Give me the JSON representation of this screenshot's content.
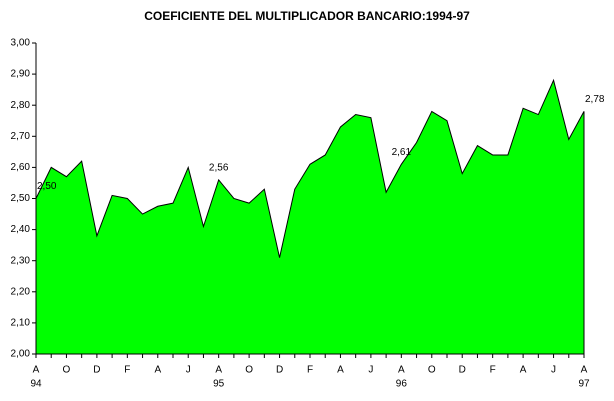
{
  "chart_data": {
    "type": "area",
    "title": "COEFICIENTE DEL MULTIPLICADOR BANCARIO:1994-97",
    "categories": [
      "A",
      null,
      "O",
      null,
      "D",
      null,
      "F",
      null,
      "A",
      null,
      "J",
      null,
      "A",
      null,
      "O",
      null,
      "D",
      null,
      "F",
      null,
      "A",
      null,
      "J",
      null,
      "A",
      null,
      "O",
      null,
      "D",
      null,
      "F",
      null,
      "A",
      null,
      "J",
      null,
      "A"
    ],
    "category_years": [
      "94",
      null,
      null,
      null,
      null,
      null,
      null,
      null,
      null,
      null,
      null,
      null,
      "95",
      null,
      null,
      null,
      null,
      null,
      null,
      null,
      null,
      null,
      null,
      null,
      "96",
      null,
      null,
      null,
      null,
      null,
      null,
      null,
      null,
      null,
      null,
      null,
      "97"
    ],
    "series": [
      {
        "color": "#00ff00",
        "values": [
          2.5,
          2.6,
          2.57,
          2.62,
          2.38,
          2.51,
          2.5,
          2.45,
          2.475,
          2.485,
          2.6,
          2.41,
          2.56,
          2.5,
          2.485,
          2.53,
          2.31,
          2.53,
          2.61,
          2.64,
          2.73,
          2.77,
          2.76,
          2.52,
          2.61,
          2.68,
          2.78,
          2.75,
          2.58,
          2.67,
          2.64,
          2.64,
          2.79,
          2.77,
          2.88,
          2.69,
          2.78
        ],
        "value_labels": [
          "2,50",
          null,
          null,
          null,
          null,
          null,
          null,
          null,
          null,
          null,
          null,
          null,
          "2,56",
          null,
          null,
          null,
          null,
          null,
          null,
          null,
          null,
          null,
          null,
          null,
          "2,61",
          null,
          null,
          null,
          null,
          null,
          null,
          null,
          null,
          null,
          null,
          null,
          "2,78"
        ]
      }
    ],
    "ylim": [
      2.0,
      3.0
    ],
    "yticks": [
      {
        "value": 2.0,
        "label": "2,00"
      },
      {
        "value": 2.1,
        "label": "2,10"
      },
      {
        "value": 2.2,
        "label": "2,20"
      },
      {
        "value": 2.3,
        "label": "2,30"
      },
      {
        "value": 2.4,
        "label": "2,40"
      },
      {
        "value": 2.5,
        "label": "2,50"
      },
      {
        "value": 2.6,
        "label": "2,60"
      },
      {
        "value": 2.7,
        "label": "2,70"
      },
      {
        "value": 2.8,
        "label": "2,80"
      },
      {
        "value": 2.9,
        "label": "2,90"
      },
      {
        "value": 3.0,
        "label": "3,00"
      }
    ],
    "grid": false
  }
}
